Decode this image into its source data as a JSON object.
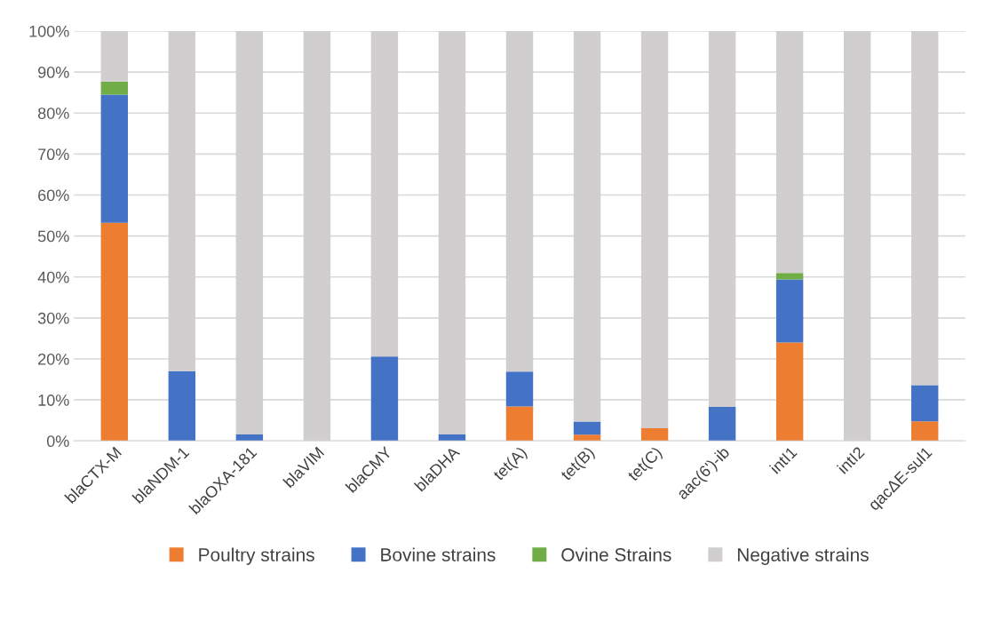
{
  "chart_data": {
    "type": "bar",
    "stacked": true,
    "categories": [
      "blaCTX-M",
      "blaNDM-1",
      "blaOXA-181",
      "blaVIM",
      "blaCMY",
      "blaDHA",
      "tet(A)",
      "tet(B)",
      "tet(C)",
      "aac(6')-ib",
      "intI1",
      "intI2",
      "qacΔE-sul1"
    ],
    "series": [
      {
        "name": "Poultry strains",
        "color": "#ed7d31",
        "values": [
          53.2,
          0,
          0,
          0,
          0,
          0,
          8.4,
          1.5,
          3.1,
          0,
          24.0,
          0,
          4.8
        ]
      },
      {
        "name": "Bovine strains",
        "color": "#4472c4",
        "values": [
          31.3,
          17.0,
          1.6,
          0,
          20.6,
          1.6,
          8.5,
          3.2,
          0,
          8.3,
          15.4,
          0,
          8.8
        ]
      },
      {
        "name": "Ovine Strains",
        "color": "#70ad47",
        "values": [
          3.2,
          0,
          0,
          0,
          0,
          0,
          0,
          0,
          0,
          0,
          1.6,
          0,
          0
        ]
      },
      {
        "name": "Negative strains",
        "color": "#d0cecf",
        "values": [
          12.3,
          83.0,
          98.4,
          100,
          79.4,
          98.4,
          83.1,
          95.3,
          96.9,
          91.7,
          59.0,
          100,
          86.4
        ]
      }
    ],
    "ylim": [
      0,
      100
    ],
    "yticks": [
      {
        "value": 0,
        "label": "0%"
      },
      {
        "value": 10,
        "label": "10%"
      },
      {
        "value": 20,
        "label": "20%"
      },
      {
        "value": 30,
        "label": "30%"
      },
      {
        "value": 40,
        "label": "40%"
      },
      {
        "value": 50,
        "label": "50%"
      },
      {
        "value": 60,
        "label": "60%"
      },
      {
        "value": 70,
        "label": "70%"
      },
      {
        "value": 80,
        "label": "80%"
      },
      {
        "value": 90,
        "label": "90%"
      },
      {
        "value": 100,
        "label": "100%"
      }
    ],
    "grid": "y",
    "legend": "bottom"
  }
}
